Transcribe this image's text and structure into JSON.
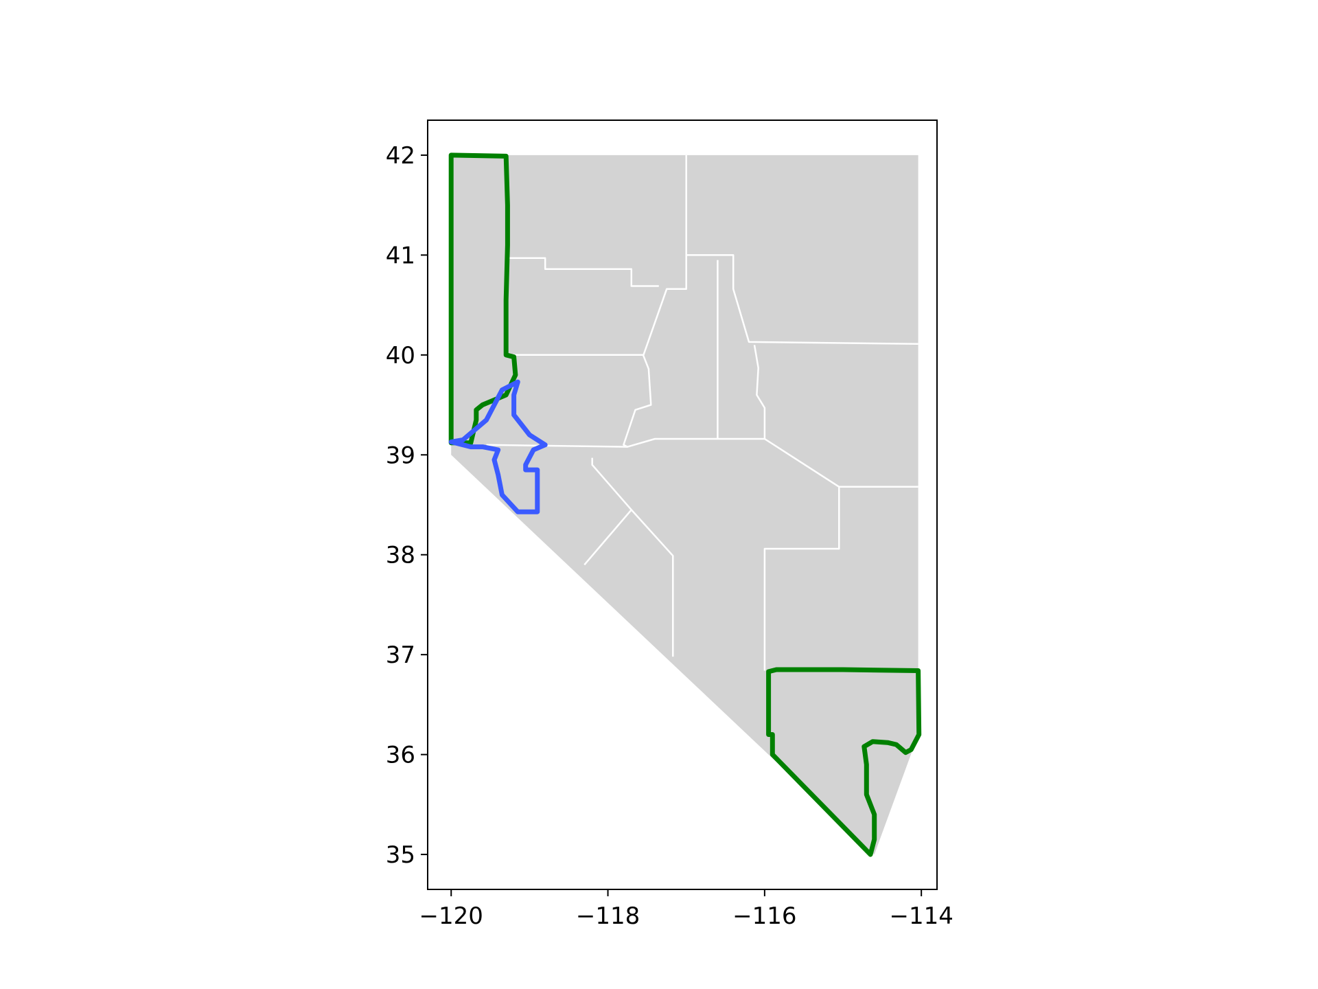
{
  "chart_data": {
    "type": "map",
    "title": "",
    "xlabel": "",
    "ylabel": "",
    "xlim": [
      -120.3,
      -113.8
    ],
    "ylim": [
      34.65,
      42.35
    ],
    "x_ticks": [
      {
        "value": -120,
        "label": "−120"
      },
      {
        "value": -118,
        "label": "−118"
      },
      {
        "value": -116,
        "label": "−116"
      },
      {
        "value": -114,
        "label": "−114"
      }
    ],
    "y_ticks": [
      {
        "value": 35,
        "label": "35"
      },
      {
        "value": 36,
        "label": "36"
      },
      {
        "value": 37,
        "label": "37"
      },
      {
        "value": 38,
        "label": "38"
      },
      {
        "value": 39,
        "label": "39"
      },
      {
        "value": 40,
        "label": "40"
      },
      {
        "value": 41,
        "label": "41"
      },
      {
        "value": 42,
        "label": "42"
      }
    ],
    "colors": {
      "fill": "#d3d3d3",
      "county_border": "#ffffff",
      "highlight_green": "#008000",
      "highlight_blue": "#3b5bff",
      "axes": "#000000"
    },
    "state_outline": [
      [
        -120.0,
        42.0
      ],
      [
        -114.04,
        42.0
      ],
      [
        -114.04,
        36.2
      ],
      [
        -114.6,
        35.0
      ],
      [
        -120.0,
        39.0
      ],
      [
        -120.0,
        42.0
      ]
    ],
    "county_borders": [
      [
        [
          -119.3,
          40.97
        ],
        [
          -118.8,
          40.97
        ],
        [
          -118.8,
          40.86
        ],
        [
          -117.7,
          40.86
        ],
        [
          -117.7,
          40.69
        ],
        [
          -117.35,
          40.69
        ]
      ],
      [
        [
          -117.0,
          42.0
        ],
        [
          -117.0,
          40.66
        ],
        [
          -117.25,
          40.66
        ],
        [
          -117.55,
          39.99
        ]
      ],
      [
        [
          -117.0,
          41.0
        ],
        [
          -116.4,
          41.0
        ],
        [
          -116.4,
          40.66
        ],
        [
          -116.2,
          40.13
        ],
        [
          -114.04,
          40.11
        ]
      ],
      [
        [
          -119.3,
          40.0
        ],
        [
          -117.55,
          40.0
        ],
        [
          -117.48,
          39.86
        ],
        [
          -117.45,
          39.5
        ],
        [
          -117.65,
          39.45
        ],
        [
          -117.8,
          39.1
        ],
        [
          -117.75,
          39.08
        ]
      ],
      [
        [
          -116.6,
          40.95
        ],
        [
          -116.6,
          39.16
        ]
      ],
      [
        [
          -116.13,
          40.1
        ],
        [
          -116.08,
          39.87
        ],
        [
          -116.1,
          39.6
        ],
        [
          -116.0,
          39.47
        ],
        [
          -116.0,
          39.16
        ]
      ],
      [
        [
          -119.55,
          39.1
        ],
        [
          -117.75,
          39.08
        ],
        [
          -117.4,
          39.16
        ],
        [
          -116.0,
          39.16
        ],
        [
          -115.05,
          38.68
        ],
        [
          -114.04,
          38.68
        ]
      ],
      [
        [
          -115.05,
          38.68
        ],
        [
          -115.05,
          38.06
        ],
        [
          -116.0,
          38.06
        ],
        [
          -116.0,
          36.84
        ]
      ],
      [
        [
          -118.2,
          38.97
        ],
        [
          -118.2,
          38.9
        ],
        [
          -117.7,
          38.45
        ],
        [
          -117.17,
          37.99
        ],
        [
          -117.17,
          36.98
        ]
      ],
      [
        [
          -117.7,
          38.45
        ],
        [
          -118.3,
          37.9
        ]
      ]
    ],
    "highlighted_regions": [
      {
        "name": "green-region-west",
        "color": "#008000",
        "points": [
          [
            -120.0,
            42.0
          ],
          [
            -119.3,
            41.99
          ],
          [
            -119.28,
            41.5
          ],
          [
            -119.28,
            41.1
          ],
          [
            -119.3,
            40.55
          ],
          [
            -119.3,
            40.0
          ],
          [
            -119.2,
            39.98
          ],
          [
            -119.18,
            39.8
          ],
          [
            -119.3,
            39.6
          ],
          [
            -119.45,
            39.55
          ],
          [
            -119.6,
            39.5
          ],
          [
            -119.68,
            39.45
          ],
          [
            -119.68,
            39.35
          ],
          [
            -119.75,
            39.12
          ],
          [
            -120.0,
            39.12
          ],
          [
            -120.0,
            42.0
          ]
        ]
      },
      {
        "name": "green-region-south",
        "color": "#008000",
        "points": [
          [
            -115.95,
            36.83
          ],
          [
            -115.85,
            36.85
          ],
          [
            -115.0,
            36.85
          ],
          [
            -114.04,
            36.84
          ],
          [
            -114.03,
            36.2
          ],
          [
            -114.13,
            36.05
          ],
          [
            -114.2,
            36.02
          ],
          [
            -114.32,
            36.1
          ],
          [
            -114.43,
            36.12
          ],
          [
            -114.62,
            36.13
          ],
          [
            -114.73,
            36.08
          ],
          [
            -114.7,
            35.9
          ],
          [
            -114.7,
            35.6
          ],
          [
            -114.6,
            35.4
          ],
          [
            -114.6,
            35.15
          ],
          [
            -114.65,
            35.0
          ],
          [
            -115.9,
            36.0
          ],
          [
            -115.9,
            36.2
          ],
          [
            -115.95,
            36.2
          ],
          [
            -115.95,
            36.83
          ]
        ]
      },
      {
        "name": "blue-region",
        "color": "#3b5bff",
        "points": [
          [
            -120.0,
            39.13
          ],
          [
            -119.85,
            39.15
          ],
          [
            -119.55,
            39.35
          ],
          [
            -119.35,
            39.65
          ],
          [
            -119.15,
            39.73
          ],
          [
            -119.2,
            39.6
          ],
          [
            -119.2,
            39.4
          ],
          [
            -119.0,
            39.2
          ],
          [
            -118.8,
            39.1
          ],
          [
            -118.95,
            39.05
          ],
          [
            -119.05,
            38.9
          ],
          [
            -119.05,
            38.85
          ],
          [
            -118.9,
            38.85
          ],
          [
            -118.9,
            38.43
          ],
          [
            -119.15,
            38.43
          ],
          [
            -119.35,
            38.6
          ],
          [
            -119.4,
            38.8
          ],
          [
            -119.45,
            38.95
          ],
          [
            -119.4,
            39.05
          ],
          [
            -119.6,
            39.08
          ],
          [
            -119.75,
            39.08
          ],
          [
            -119.85,
            39.1
          ],
          [
            -120.0,
            39.13
          ]
        ]
      }
    ]
  }
}
